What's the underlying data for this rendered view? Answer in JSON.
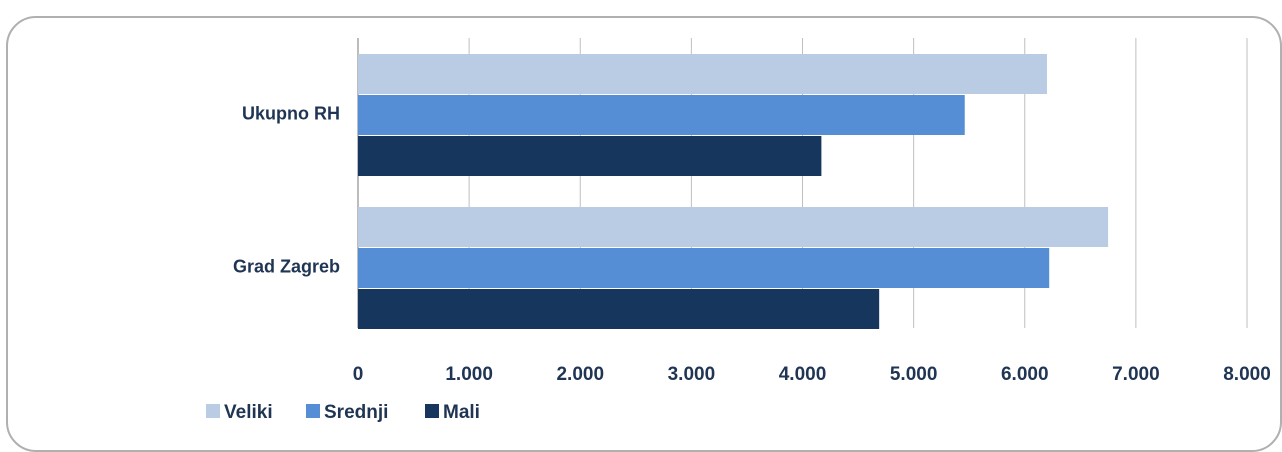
{
  "chart_data": {
    "type": "bar",
    "orientation": "horizontal",
    "categories": [
      "Ukupno RH",
      "Grad Zagreb"
    ],
    "series": [
      {
        "name": "Veliki",
        "color": "#b9cce4",
        "values": [
          6200,
          6750
        ]
      },
      {
        "name": "Srednji",
        "color": "#558ed5",
        "values": [
          5460,
          6220
        ]
      },
      {
        "name": "Mali",
        "color": "#17365d",
        "values": [
          4170,
          4690
        ]
      }
    ],
    "x_ticks": [
      "0",
      "1.000",
      "2.000",
      "3.000",
      "4.000",
      "5.000",
      "6.000",
      "7.000",
      "8.000"
    ],
    "xlim": [
      0,
      8000
    ],
    "grid": "vertical",
    "legend_position": "bottom-left",
    "title": "",
    "xlabel": "",
    "ylabel": ""
  }
}
